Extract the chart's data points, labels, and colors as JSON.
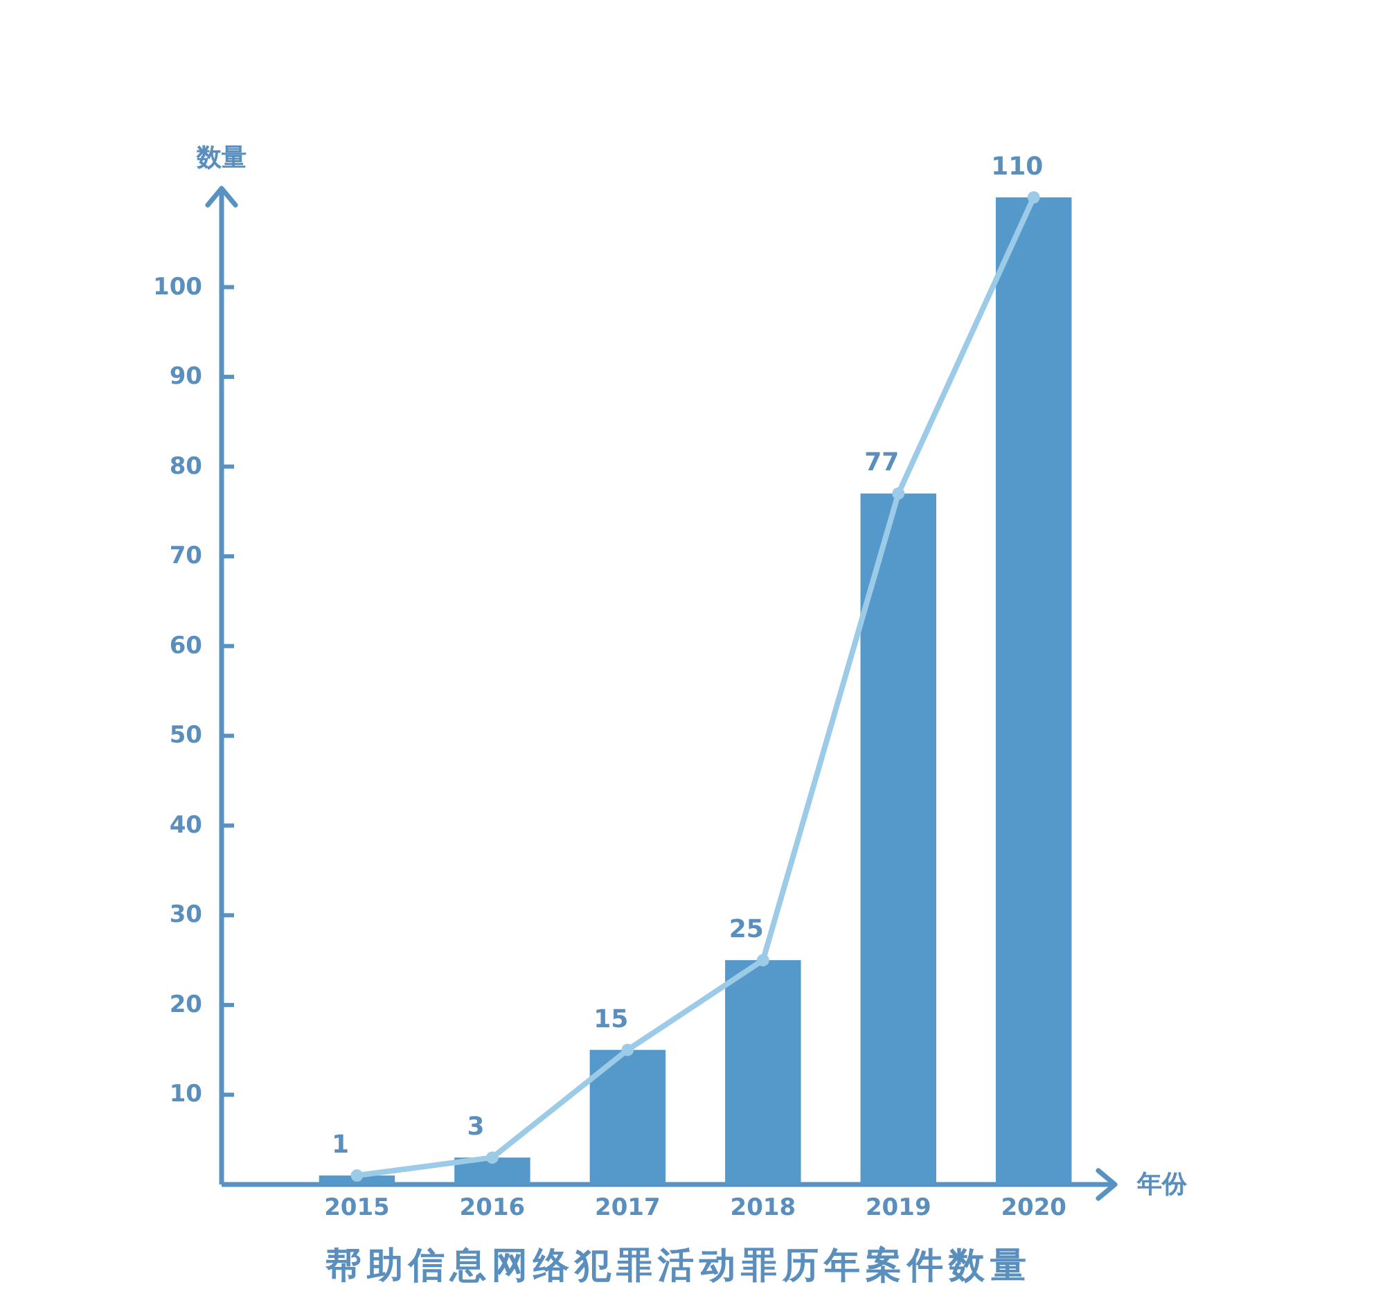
{
  "chart_data": {
    "type": "bar",
    "title": "帮助信息网络犯罪活动罪历年案件数量",
    "xlabel": "年份",
    "ylabel": "数量",
    "categories": [
      "2015",
      "2016",
      "2017",
      "2018",
      "2019",
      "2020"
    ],
    "series": [
      {
        "color": "#5499c9",
        "values": [
          1,
          3,
          15,
          25,
          77,
          110
        ]
      },
      {
        "type": "line",
        "color": "#9ccbe8",
        "marker": "circle",
        "values": [
          1,
          3,
          15,
          25,
          77,
          110
        ],
        "value_labels": [
          "1",
          "3",
          "15",
          "25",
          "77",
          "110"
        ]
      }
    ],
    "ylim": [
      0,
      111
    ],
    "yticks": [
      10,
      20,
      30,
      40,
      50,
      60,
      70,
      80,
      90,
      100
    ]
  }
}
